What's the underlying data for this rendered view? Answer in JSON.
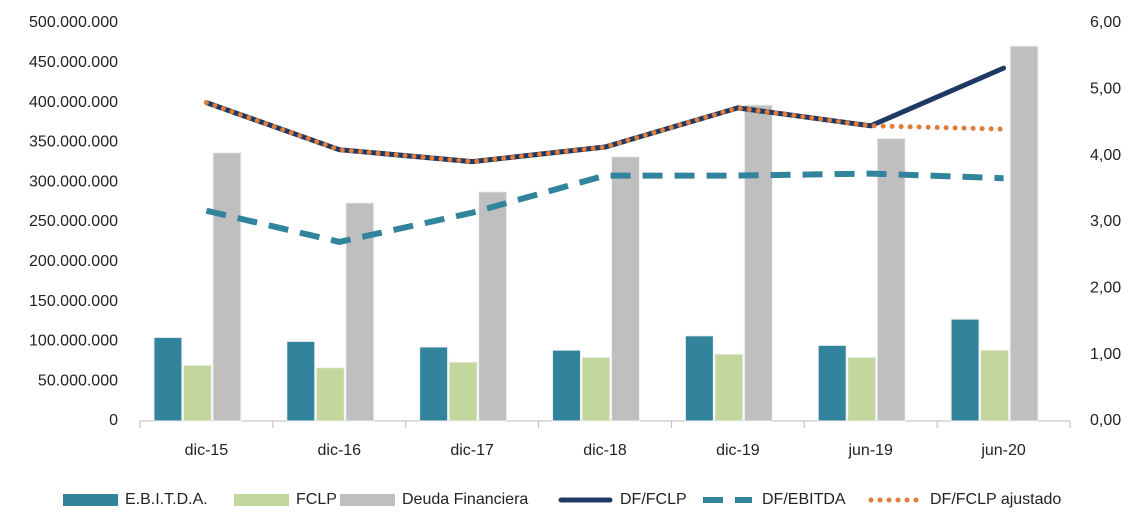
{
  "chart_data": {
    "type": "bar-line",
    "categories": [
      "dic-15",
      "dic-16",
      "dic-17",
      "dic-18",
      "dic-19",
      "jun-19",
      "jun-20"
    ],
    "series": [
      {
        "name": "E.B.I.T.D.A.",
        "type": "bar",
        "color": "#31849b",
        "values": [
          105000000,
          100000000,
          93000000,
          89000000,
          107000000,
          95000000,
          128000000
        ]
      },
      {
        "name": "FCLP",
        "type": "bar",
        "color": "#c3d69b",
        "values": [
          70000000,
          67000000,
          74000000,
          80000000,
          84000000,
          80000000,
          89000000
        ]
      },
      {
        "name": "Deuda Financiera",
        "type": "bar",
        "color": "#bfbfbf",
        "values": [
          337000000,
          274000000,
          288000000,
          332000000,
          397000000,
          355000000,
          471000000
        ]
      },
      {
        "name": "DF/FCLP",
        "type": "line",
        "style": "solid",
        "axis": "y2",
        "color": "#203864",
        "values": [
          4.8,
          4.09,
          3.91,
          4.13,
          4.72,
          4.45,
          5.32
        ]
      },
      {
        "name": "DF/EBITDA",
        "type": "line",
        "style": "dashed",
        "axis": "y2",
        "color": "#31849b",
        "values": [
          3.17,
          2.7,
          3.14,
          3.7,
          3.7,
          3.73,
          3.66
        ]
      },
      {
        "name": "DF/FCLP ajustado",
        "type": "line",
        "style": "dotted",
        "axis": "y2",
        "color": "#e07b39",
        "values": [
          4.8,
          4.09,
          3.91,
          4.13,
          4.72,
          4.45,
          4.4
        ]
      }
    ],
    "ylim": [
      0,
      500000000
    ],
    "yticks": [
      0,
      {
        "value": 50000000,
        "label": "50.000.000"
      },
      {
        "value": 100000000,
        "label": "100.000.000"
      },
      {
        "value": 150000000,
        "label": "150.000.000"
      },
      {
        "value": 200000000,
        "label": "200.000.000"
      },
      {
        "value": 250000000,
        "label": "250.000.000"
      },
      {
        "value": 300000000,
        "label": "300.000.000"
      },
      {
        "value": 350000000,
        "label": "350.000.000"
      },
      {
        "value": 400000000,
        "label": "400.000.000"
      },
      {
        "value": 450000000,
        "label": "450.000.000"
      },
      {
        "value": 500000000,
        "label": "500.000.000"
      }
    ],
    "y2lim": [
      0,
      6
    ],
    "y2ticks": [
      {
        "value": 0,
        "label": "0,00"
      },
      {
        "value": 1,
        "label": "1,00"
      },
      {
        "value": 2,
        "label": "2,00"
      },
      {
        "value": 3,
        "label": "3,00"
      },
      {
        "value": 4,
        "label": "4,00"
      },
      {
        "value": 5,
        "label": "5,00"
      },
      {
        "value": 6,
        "label": "6,00"
      }
    ],
    "legend": "bottom"
  }
}
